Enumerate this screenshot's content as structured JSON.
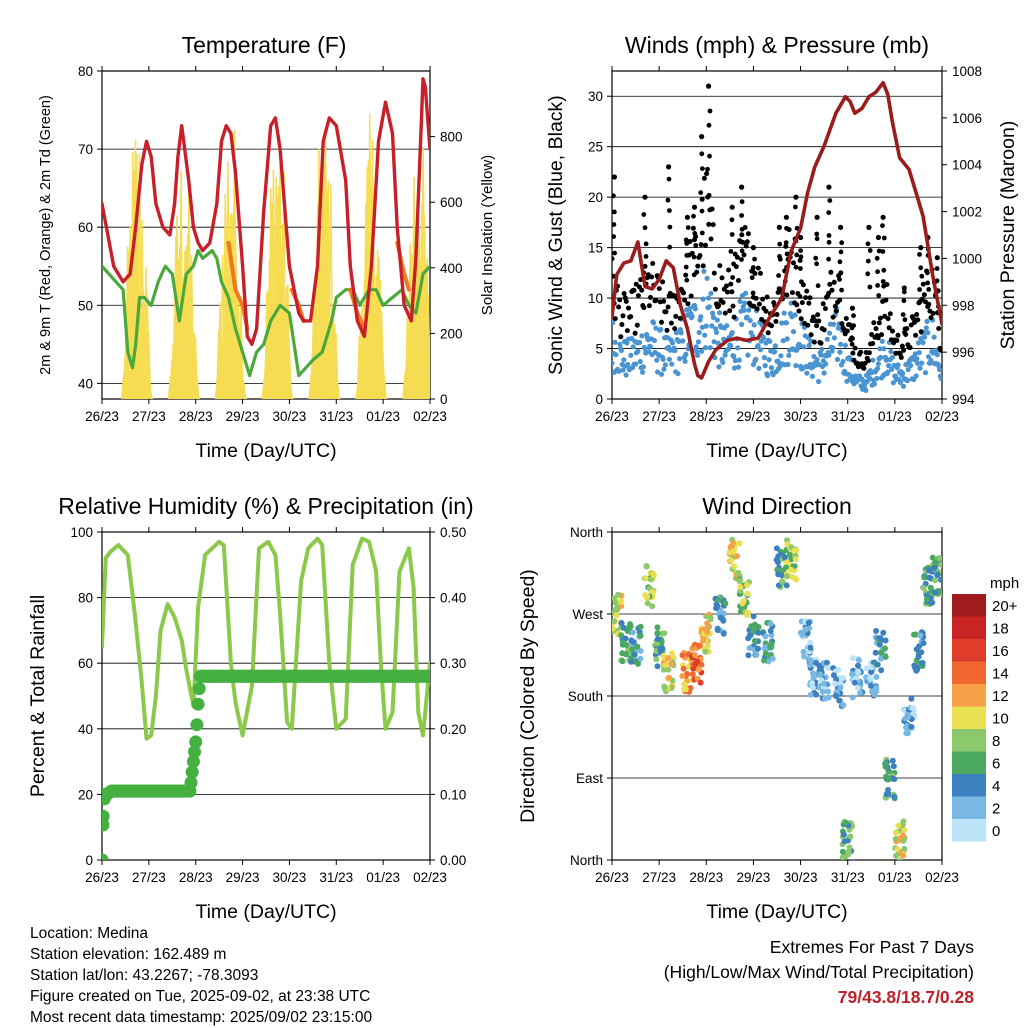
{
  "x_ticks": [
    "26/23",
    "27/23",
    "28/23",
    "29/23",
    "30/23",
    "31/23",
    "01/23",
    "02/23"
  ],
  "footer": {
    "location": "Location: Medina",
    "elevation": "Station elevation: 162.489 m",
    "latlon": "Station lat/lon: 43.2267; -78.3093",
    "created": "Figure created on Tue, 2025-09-02, at 23:38 UTC",
    "recent": "Most recent data timestamp: 2025/09/02 23:15:00"
  },
  "extremes": {
    "line1": "Extremes For Past 7 Days",
    "line2": "(High/Low/Max Wind/Total Precipitation)",
    "value": "79/43.8/18.7/0.28"
  },
  "colors": {
    "temp2m": "#c8202a",
    "temp9m": "#f07820",
    "dewpoint": "#4aa83c",
    "solar": "#f5dc50",
    "wind": "#4a94d2",
    "gust": "#000000",
    "pressure": "#9a1c1c",
    "rh": "#8cc84a",
    "precip": "#44b040"
  },
  "chart_data": [
    {
      "type": "line",
      "title": "Temperature (F)",
      "xlabel": "Time (Day/UTC)",
      "ylabel": "2m & 9m T (Red, Orange) & 2m Td (Green)",
      "ylabel_right": "Solar Insolation (Yellow)",
      "xlim": [
        0,
        7
      ],
      "ylim": [
        38,
        80
      ],
      "ylim_right": [
        0,
        1000
      ],
      "yticks": [
        40,
        50,
        60,
        70,
        80
      ],
      "yticks_right": [
        0,
        200,
        400,
        600,
        800
      ],
      "grid": true,
      "series": [
        {
          "key": "t2m",
          "x": [
            0,
            0.25,
            0.45,
            0.6,
            0.72,
            0.85,
            0.95,
            1.05,
            1.15,
            1.3,
            1.45,
            1.55,
            1.62,
            1.7,
            1.85,
            1.95,
            2.05,
            2.15,
            2.3,
            2.45,
            2.55,
            2.65,
            2.75,
            2.85,
            3.0,
            3.1,
            3.2,
            3.3,
            3.45,
            3.6,
            3.7,
            3.8,
            4.0,
            4.2,
            4.3,
            4.45,
            4.6,
            4.72,
            4.85,
            5.0,
            5.2,
            5.3,
            5.45,
            5.6,
            5.75,
            5.9,
            6.05,
            6.2,
            6.3,
            6.45,
            6.6,
            6.7,
            6.8,
            6.85,
            6.9,
            7.0
          ],
          "y": [
            63,
            55,
            53,
            54,
            60,
            68,
            71,
            69,
            63,
            60,
            59,
            63,
            69,
            73,
            66,
            60,
            58,
            57,
            58,
            63,
            71,
            73,
            72,
            67,
            55,
            46,
            45,
            47,
            62,
            73,
            74,
            70,
            55,
            49,
            48,
            48,
            55,
            71,
            74,
            73,
            66,
            55,
            48,
            46,
            55,
            71,
            76,
            72,
            60,
            50,
            48,
            56,
            71,
            79,
            78,
            70
          ]
        },
        {
          "key": "t9m",
          "x": [
            2.7,
            2.85,
            3.0,
            3.1,
            4.05,
            4.2,
            4.3,
            5.3,
            5.45,
            5.6,
            6.3,
            6.45,
            6.55
          ],
          "y": [
            58,
            52,
            50,
            47,
            52,
            50,
            48,
            52,
            49,
            47,
            58,
            54,
            52
          ]
        },
        {
          "key": "td",
          "x": [
            0,
            0.15,
            0.3,
            0.45,
            0.55,
            0.65,
            0.72,
            0.8,
            0.9,
            1.05,
            1.2,
            1.35,
            1.5,
            1.65,
            1.8,
            1.95,
            2.05,
            2.15,
            2.35,
            2.45,
            2.55,
            2.7,
            2.85,
            3.0,
            3.15,
            3.3,
            3.45,
            3.6,
            3.8,
            4.0,
            4.1,
            4.2,
            4.35,
            4.5,
            4.7,
            4.9,
            5.0,
            5.2,
            5.35,
            5.5,
            5.7,
            5.85,
            6.0,
            6.2,
            6.4,
            6.55,
            6.7,
            6.85,
            7.0
          ],
          "y": [
            55,
            54,
            53,
            52,
            44,
            42,
            45,
            51,
            51,
            50,
            53,
            55,
            54,
            48,
            54,
            55,
            57,
            56,
            57,
            56,
            53,
            51,
            47,
            44,
            41,
            44,
            45,
            48,
            50,
            49,
            45,
            41,
            42,
            43,
            44,
            48,
            51,
            52,
            52,
            50,
            52,
            52,
            50,
            51,
            52,
            50,
            49,
            54,
            55
          ]
        },
        {
          "key": "solar",
          "peaks": [
            0.7,
            1.7,
            2.7,
            3.7,
            4.7,
            5.7,
            6.7
          ],
          "peak_values": [
            900,
            820,
            940,
            960,
            920,
            880,
            940
          ]
        }
      ]
    },
    {
      "type": "scatter",
      "title": "Winds (mph) & Pressure (mb)",
      "xlabel": "Time (Day/UTC)",
      "ylabel": "Sonic Wind & Gust (Blue, Black)",
      "ylabel_right": "Station Pressure (Maroon)",
      "xlim": [
        0,
        7
      ],
      "ylim": [
        0,
        32.5
      ],
      "ylim_right": [
        994,
        1008
      ],
      "yticks": [
        0,
        5,
        10,
        15,
        20,
        25,
        30
      ],
      "yticks_right": [
        994,
        996,
        998,
        1000,
        1002,
        1004,
        1006,
        1008
      ],
      "grid": true,
      "series": [
        {
          "key": "wind_mean",
          "x": [
            0,
            0.2,
            0.4,
            0.6,
            0.8,
            1.0,
            1.2,
            1.4,
            1.6,
            1.8,
            2.0,
            2.2,
            2.4,
            2.6,
            2.8,
            3.0,
            3.2,
            3.4,
            3.6,
            3.8,
            4.0,
            4.2,
            4.4,
            4.6,
            4.8,
            5.0,
            5.2,
            5.4,
            5.6,
            5.8,
            6.0,
            6.2,
            6.4,
            6.6,
            6.8,
            7.0
          ],
          "y": [
            7,
            5,
            5,
            6,
            7,
            6,
            5,
            6,
            8,
            9,
            12,
            8,
            6,
            7,
            9,
            8,
            6,
            5,
            7,
            9,
            7,
            5,
            4,
            6,
            8,
            4,
            2,
            2,
            4,
            6,
            3,
            3,
            4,
            6,
            7,
            3
          ]
        },
        {
          "key": "gust_peaks",
          "x": [
            0.05,
            0.7,
            1.2,
            1.6,
            1.75,
            1.9,
            2.05,
            2.55,
            2.75,
            3.0,
            3.55,
            3.7,
            3.9,
            4.0,
            4.35,
            4.6,
            4.85,
            5.1,
            5.45,
            5.65,
            5.75,
            6.2,
            6.55,
            6.7,
            6.9
          ],
          "y": [
            22,
            20,
            23,
            18,
            19,
            26,
            31,
            19,
            21,
            15,
            17,
            18,
            20,
            16,
            18,
            21,
            17,
            9,
            17,
            16,
            18,
            11,
            15,
            16,
            14
          ]
        },
        {
          "key": "pressure",
          "x": [
            0,
            0.1,
            0.25,
            0.4,
            0.55,
            0.7,
            0.85,
            1.0,
            1.15,
            1.3,
            1.45,
            1.6,
            1.75,
            1.82,
            1.9,
            2.05,
            2.2,
            2.45,
            2.65,
            2.85,
            3.1,
            3.35,
            3.6,
            3.8,
            4.0,
            4.15,
            4.3,
            4.5,
            4.75,
            4.95,
            5.05,
            5.15,
            5.3,
            5.45,
            5.6,
            5.75,
            5.85,
            5.95,
            6.1,
            6.3,
            6.45,
            6.6,
            6.8,
            7.0
          ],
          "y": [
            997.5,
            999.3,
            999.8,
            999.9,
            1000.7,
            998.8,
            998.7,
            999.1,
            999.9,
            999.6,
            998.0,
            997.0,
            995.5,
            995.0,
            994.9,
            995.6,
            996.1,
            996.5,
            996.6,
            996.5,
            996.6,
            997.5,
            998.3,
            1000.3,
            1001.3,
            1002.8,
            1003.9,
            1004.8,
            1006.2,
            1006.9,
            1006.7,
            1006.2,
            1006.4,
            1006.9,
            1007.1,
            1007.5,
            1007.0,
            1005.8,
            1004.3,
            1003.8,
            1002.8,
            1001.8,
            999.3,
            997.2
          ]
        }
      ]
    },
    {
      "type": "line",
      "title": "Relative Humidity (%) & Precipitation (in)",
      "xlabel": "Time (Day/UTC)",
      "ylabel": "Percent & Total Rainfall",
      "xlim": [
        0,
        7
      ],
      "ylim": [
        0,
        100
      ],
      "ylim_right": [
        0,
        0.5
      ],
      "yticks": [
        0,
        20,
        40,
        60,
        80,
        100
      ],
      "yticks_right": [
        "0.00",
        "0.10",
        "0.20",
        "0.30",
        "0.40",
        "0.50"
      ],
      "grid": true,
      "series": [
        {
          "key": "rh",
          "x": [
            0,
            0.08,
            0.18,
            0.35,
            0.55,
            0.7,
            0.85,
            0.95,
            1.05,
            1.15,
            1.25,
            1.4,
            1.55,
            1.7,
            1.8,
            1.95,
            2.05,
            2.2,
            2.35,
            2.5,
            2.6,
            2.75,
            2.85,
            3.0,
            3.2,
            3.35,
            3.55,
            3.7,
            3.8,
            3.95,
            4.05,
            4.25,
            4.4,
            4.6,
            4.7,
            4.85,
            5.0,
            5.2,
            5.35,
            5.55,
            5.7,
            5.85,
            5.95,
            6.05,
            6.2,
            6.35,
            6.55,
            6.65,
            6.75,
            6.85,
            7.0
          ],
          "y": [
            65,
            92,
            94,
            96,
            93,
            75,
            54,
            37,
            38,
            50,
            70,
            78,
            74,
            67,
            58,
            47,
            77,
            93,
            95,
            97,
            96,
            60,
            48,
            38,
            53,
            95,
            97,
            93,
            75,
            42,
            40,
            85,
            95,
            98,
            96,
            60,
            40,
            43,
            90,
            98,
            97,
            88,
            60,
            40,
            45,
            88,
            95,
            83,
            45,
            38,
            60
          ]
        },
        {
          "key": "precip",
          "x": [
            0,
            0.03,
            0.06,
            0.1,
            0.2,
            1.88,
            1.95,
            2.0,
            2.02,
            2.06,
            2.1,
            7.0
          ],
          "y": [
            0,
            0.08,
            0.1,
            0.1,
            0.105,
            0.105,
            0.15,
            0.18,
            0.2,
            0.25,
            0.28,
            0.28
          ]
        }
      ]
    },
    {
      "type": "scatter",
      "title": "Wind Direction",
      "xlabel": "Time (Day/UTC)",
      "ylabel": "Direction (Colored By Speed)",
      "xlim": [
        0,
        7
      ],
      "ylim": [
        0,
        360
      ],
      "yticks": [
        "North",
        "East",
        "South",
        "West",
        "North"
      ],
      "grid": true,
      "legend_title": "mph",
      "legend_labels": [
        "20+",
        "18",
        "16",
        "14",
        "12",
        "10",
        "8",
        "6",
        "4",
        "2",
        "0"
      ],
      "legend_colors": [
        "#a01c1c",
        "#c82424",
        "#e03c2c",
        "#f06830",
        "#f8a048",
        "#e8e050",
        "#8cc86c",
        "#4aa860",
        "#3c80c0",
        "#7ab8e4",
        "#bce4f8"
      ],
      "series": [
        {
          "key": "dir_clusters",
          "x": [
            0.1,
            0.3,
            0.5,
            0.8,
            1.0,
            1.2,
            1.6,
            1.8,
            2.0,
            2.3,
            2.6,
            2.8,
            3.0,
            3.3,
            3.6,
            3.8,
            4.1,
            4.3,
            4.5,
            4.8,
            5.0,
            5.2,
            5.5,
            5.7,
            5.9,
            6.1,
            6.3,
            6.5,
            6.7,
            6.9
          ],
          "y": [
            270,
            240,
            235,
            300,
            235,
            205,
            205,
            215,
            250,
            270,
            330,
            290,
            245,
            240,
            320,
            330,
            240,
            200,
            195,
            190,
            20,
            200,
            200,
            230,
            90,
            20,
            160,
            230,
            300,
            310
          ],
          "speed": [
            10,
            6,
            4,
            8,
            6,
            10,
            12,
            14,
            10,
            4,
            10,
            8,
            4,
            4,
            6,
            8,
            2,
            2,
            2,
            2,
            6,
            2,
            2,
            4,
            6,
            10,
            2,
            4,
            6,
            6
          ]
        }
      ]
    }
  ]
}
